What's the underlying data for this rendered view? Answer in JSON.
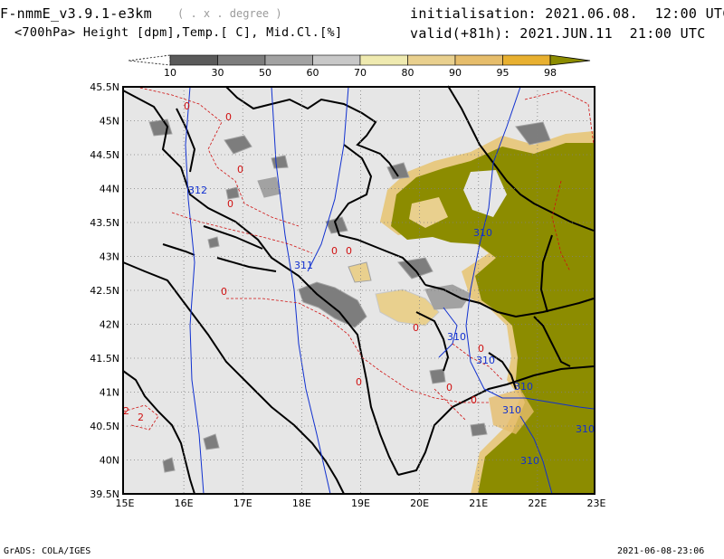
{
  "header": {
    "model": "F-nmmE_v3.9.1-e3km",
    "units_note": "( . x . degree )",
    "fields": "<700hPa> Height [dpm],Temp.[ C], Mid.Cl.[%]",
    "init": "initialisation: 2021.06.08.  12:00 UTC",
    "valid": "valid(+81h): 2021.JUN.11  21:00 UTC"
  },
  "colorbar": {
    "labels": [
      "10",
      "30",
      "50",
      "60",
      "70",
      "80",
      "90",
      "95",
      "98"
    ],
    "colors": [
      "#ffffff",
      "#5a5a5a",
      "#7d7d7d",
      "#a2a2a2",
      "#c8c8c8",
      "#efeab0",
      "#e9d08e",
      "#e6bd6b",
      "#e8b030",
      "#8c8c00"
    ]
  },
  "axes": {
    "lat_labels": [
      "45.5N",
      "45N",
      "44.5N",
      "44N",
      "43.5N",
      "43N",
      "42.5N",
      "42N",
      "41.5N",
      "41N",
      "40.5N",
      "40N",
      "39.5N"
    ],
    "lon_labels": [
      "15E",
      "16E",
      "17E",
      "18E",
      "19E",
      "20E",
      "21E",
      "22E",
      "23E"
    ]
  },
  "map": {
    "background": "#e6e6e6",
    "cloud_olive": "#8c8c00",
    "contour_height_color": "#1030d0",
    "contour_temp_color": "#d01010",
    "height_labels": [
      "312",
      "311",
      "310",
      "310",
      "310",
      "310",
      "310",
      "310",
      "310"
    ],
    "temp_labels": [
      "0",
      "0",
      "0",
      "0",
      "0",
      "0",
      "0",
      "0",
      "0",
      "0",
      "0",
      "0",
      "2",
      "2"
    ]
  },
  "footer": {
    "left": "GrADS: COLA/IGES",
    "right": "2021-06-08-23:06"
  }
}
